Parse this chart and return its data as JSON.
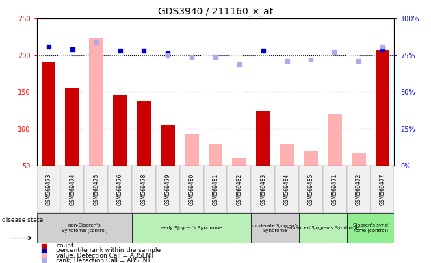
{
  "title": "GDS3940 / 211160_x_at",
  "samples": [
    "GSM569473",
    "GSM569474",
    "GSM569475",
    "GSM569476",
    "GSM569478",
    "GSM569479",
    "GSM569480",
    "GSM569481",
    "GSM569482",
    "GSM569483",
    "GSM569484",
    "GSM569485",
    "GSM569471",
    "GSM569472",
    "GSM569477"
  ],
  "count_values": [
    190,
    155,
    null,
    147,
    137,
    105,
    null,
    null,
    null,
    124,
    null,
    null,
    null,
    null,
    207
  ],
  "count_absent": [
    null,
    null,
    224,
    null,
    null,
    null,
    93,
    80,
    60,
    null,
    80,
    70,
    120,
    68,
    null
  ],
  "rank_present": [
    81,
    79,
    null,
    78,
    78,
    76,
    null,
    null,
    null,
    78,
    null,
    null,
    null,
    null,
    79
  ],
  "rank_absent": [
    null,
    null,
    84,
    null,
    null,
    75,
    74,
    74,
    69,
    null,
    71,
    72,
    77,
    71,
    81
  ],
  "ylim_left": [
    50,
    250
  ],
  "ylim_right": [
    0,
    100
  ],
  "yticks_left": [
    50,
    100,
    150,
    200,
    250
  ],
  "yticks_right": [
    0,
    25,
    50,
    75,
    100
  ],
  "disease_groups": [
    {
      "label": "non-Sjogren's\nSyndrome (control)",
      "start": 0,
      "end": 4,
      "color": "#d0d0d0"
    },
    {
      "label": "early Sjogren's Syndrome",
      "start": 4,
      "end": 9,
      "color": "#b8f0b8"
    },
    {
      "label": "moderate Sjogren's\nSyndrome",
      "start": 9,
      "end": 11,
      "color": "#d0d0d0"
    },
    {
      "label": "advanced Sjogren's Syndrome",
      "start": 11,
      "end": 13,
      "color": "#b8f0b8"
    },
    {
      "label": "Sjogren's synd\nrome (control)",
      "start": 13,
      "end": 15,
      "color": "#90ee90"
    }
  ],
  "bar_color_present": "#cc0000",
  "bar_color_absent": "#ffb0b0",
  "dot_color_present": "#0000cc",
  "dot_color_absent": "#aaaaee",
  "bar_width": 0.6,
  "background_color": "#f0f0f0"
}
